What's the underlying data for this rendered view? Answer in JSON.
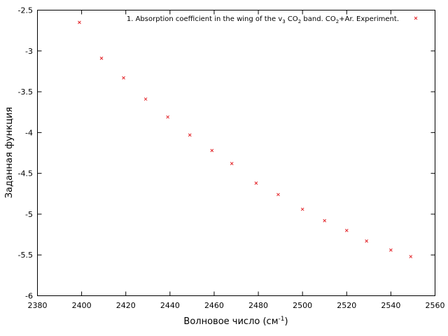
{
  "chart_data": {
    "type": "scatter",
    "xlabel": "Волновое число (см",
    "xlabel_sup": "-1",
    "xlabel_tail": ")",
    "ylabel": "Заданная функция",
    "xlim": [
      2380,
      2560
    ],
    "ylim": [
      -6,
      -2.5
    ],
    "x_ticks": [
      "2380",
      "2400",
      "2420",
      "2440",
      "2460",
      "2480",
      "2500",
      "2520",
      "2540",
      "2560"
    ],
    "y_ticks": [
      "-6",
      "-5.5",
      "-5",
      "-4.5",
      "-4",
      "-3.5",
      "-3",
      "-2.5"
    ],
    "grid": false,
    "legend_position": "top-right",
    "marker_color": "#e3262b",
    "series": [
      {
        "name_parts": [
          "1. Absorption coefficient in the wing of the v",
          "3",
          " CO",
          "2",
          " band. CO",
          "2",
          "+Ar. Experiment."
        ],
        "x": [
          2399,
          2409,
          2419,
          2429,
          2439,
          2449,
          2459,
          2468,
          2479,
          2489,
          2500,
          2510,
          2520,
          2529,
          2540,
          2549
        ],
        "y": [
          -2.65,
          -3.09,
          -3.33,
          -3.59,
          -3.81,
          -4.03,
          -4.22,
          -4.38,
          -4.62,
          -4.76,
          -4.94,
          -5.08,
          -5.2,
          -5.33,
          -5.44,
          -5.52
        ]
      }
    ]
  }
}
